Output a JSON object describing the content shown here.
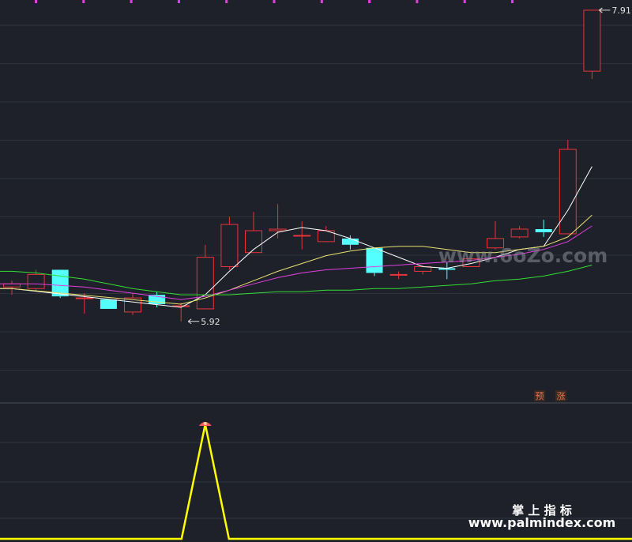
{
  "chart_data": [
    {
      "type": "candlestick",
      "panel": "main",
      "price_range": [
        5.55,
        7.95
      ],
      "grid": true,
      "candles": [
        {
          "o": 6.14,
          "h": 6.18,
          "l": 6.09,
          "c": 6.16
        },
        {
          "o": 6.13,
          "h": 6.25,
          "l": 6.11,
          "c": 6.22
        },
        {
          "o": 6.25,
          "h": 6.25,
          "l": 6.07,
          "c": 6.08
        },
        {
          "o": 6.07,
          "h": 6.1,
          "l": 5.97,
          "c": 6.07
        },
        {
          "o": 6.06,
          "h": 6.06,
          "l": 6.0,
          "c": 6.0
        },
        {
          "o": 5.98,
          "h": 6.1,
          "l": 5.96,
          "c": 6.07
        },
        {
          "o": 6.09,
          "h": 6.11,
          "l": 6.01,
          "c": 6.03
        },
        {
          "o": 6.02,
          "h": 6.04,
          "l": 5.92,
          "c": 6.02
        },
        {
          "o": 6.0,
          "h": 6.41,
          "l": 6.0,
          "c": 6.33
        },
        {
          "o": 6.27,
          "h": 6.59,
          "l": 6.25,
          "c": 6.54
        },
        {
          "o": 6.36,
          "h": 6.62,
          "l": 6.36,
          "c": 6.5
        },
        {
          "o": 6.5,
          "h": 6.67,
          "l": 6.45,
          "c": 6.51
        },
        {
          "o": 6.47,
          "h": 6.56,
          "l": 6.38,
          "c": 6.47
        },
        {
          "o": 6.43,
          "h": 6.53,
          "l": 6.43,
          "c": 6.5
        },
        {
          "o": 6.45,
          "h": 6.47,
          "l": 6.38,
          "c": 6.41
        },
        {
          "o": 6.39,
          "h": 6.39,
          "l": 6.21,
          "c": 6.23
        },
        {
          "o": 6.22,
          "h": 6.24,
          "l": 6.19,
          "c": 6.22
        },
        {
          "o": 6.24,
          "h": 6.28,
          "l": 6.22,
          "c": 6.27
        },
        {
          "o": 6.26,
          "h": 6.3,
          "l": 6.19,
          "c": 6.25
        },
        {
          "o": 6.27,
          "h": 6.32,
          "l": 6.27,
          "c": 6.32
        },
        {
          "o": 6.39,
          "h": 6.56,
          "l": 6.38,
          "c": 6.45
        },
        {
          "o": 6.46,
          "h": 6.53,
          "l": 6.45,
          "c": 6.51
        },
        {
          "o": 6.51,
          "h": 6.57,
          "l": 6.46,
          "c": 6.49
        },
        {
          "o": 6.48,
          "h": 7.08,
          "l": 6.48,
          "c": 7.02
        },
        {
          "o": 7.52,
          "h": 7.91,
          "l": 7.47,
          "c": 7.91
        }
      ],
      "moving_averages": [
        {
          "color": "#ffffff",
          "values": [
            6.13,
            null,
            null,
            null,
            null,
            null,
            null,
            6.01,
            6.09,
            6.24,
            6.38,
            6.49,
            6.52,
            6.5,
            6.45,
            6.39,
            6.33,
            6.27,
            6.26,
            6.29,
            6.33,
            6.38,
            6.4,
            6.63,
            6.91
          ]
        },
        {
          "color": "#e8e070",
          "values": [
            6.13,
            null,
            null,
            null,
            null,
            null,
            null,
            6.03,
            6.07,
            6.12,
            6.18,
            6.24,
            6.29,
            6.34,
            6.37,
            6.39,
            6.4,
            6.4,
            6.38,
            6.36,
            6.36,
            6.38,
            6.4,
            6.46,
            6.6
          ]
        },
        {
          "color": "#e040e0",
          "values": [
            6.16,
            6.16,
            6.15,
            6.14,
            6.12,
            6.1,
            6.08,
            6.06,
            6.08,
            6.12,
            6.16,
            6.2,
            6.23,
            6.25,
            6.26,
            6.27,
            6.28,
            6.29,
            6.3,
            6.31,
            6.33,
            6.35,
            6.38,
            6.43,
            6.53
          ]
        },
        {
          "color": "#33dd33",
          "values": [
            6.24,
            6.23,
            6.21,
            6.19,
            6.16,
            6.13,
            6.11,
            6.09,
            6.09,
            6.09,
            6.1,
            6.11,
            6.11,
            6.12,
            6.12,
            6.13,
            6.13,
            6.14,
            6.15,
            6.16,
            6.18,
            6.19,
            6.21,
            6.24,
            6.28
          ]
        }
      ],
      "annotations": [
        {
          "text": "7.91",
          "index": 24,
          "price": 7.91
        },
        {
          "text": "5.92",
          "index": 7,
          "price": 5.92
        }
      ],
      "badges": [
        "预",
        "涨"
      ]
    },
    {
      "type": "line",
      "panel": "indicator",
      "color": "#ffff00",
      "values": [
        0,
        0,
        0,
        0,
        0,
        0,
        0,
        0,
        1,
        0,
        0,
        0,
        0,
        0,
        0,
        0,
        0,
        0,
        0,
        0,
        0,
        0,
        0,
        0,
        0
      ],
      "ylim": [
        0,
        1
      ]
    }
  ],
  "watermarks": {
    "center": "www.6oZo.com",
    "brand": "掌 上 指 标",
    "url": "www.palmindex.com"
  },
  "colors": {
    "background": "#1e2129",
    "up": "#e8343a",
    "down": "#54ffff",
    "grid": "#2e323c"
  }
}
